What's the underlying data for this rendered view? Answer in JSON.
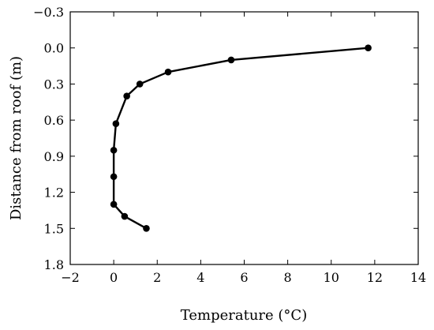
{
  "chart_data": {
    "type": "line",
    "xlabel": "Temperature (°C)",
    "ylabel": "Distance from roof (m)",
    "xlim": [
      -2,
      14
    ],
    "ylim": [
      -0.3,
      1.8
    ],
    "y_inverted": true,
    "x_ticks": [
      -2,
      0,
      2,
      4,
      6,
      8,
      10,
      12,
      14
    ],
    "x_tick_labels": [
      "−2",
      "0",
      "2",
      "4",
      "6",
      "8",
      "10",
      "12",
      "14"
    ],
    "y_ticks": [
      -0.3,
      0.0,
      0.3,
      0.6,
      0.9,
      1.2,
      1.5,
      1.8
    ],
    "y_tick_labels": [
      "−0.3",
      "0.0",
      "0.3",
      "0.6",
      "0.9",
      "1.2",
      "1.5",
      "1.8"
    ],
    "grid": false,
    "series": [
      {
        "color": "#000000",
        "marker": "circle",
        "points": [
          {
            "x": 11.7,
            "y": 0.0
          },
          {
            "x": 5.4,
            "y": 0.1
          },
          {
            "x": 2.5,
            "y": 0.2
          },
          {
            "x": 1.2,
            "y": 0.3
          },
          {
            "x": 0.6,
            "y": 0.4
          },
          {
            "x": 0.1,
            "y": 0.63
          },
          {
            "x": 0.0,
            "y": 0.85
          },
          {
            "x": 0.0,
            "y": 1.07
          },
          {
            "x": 0.0,
            "y": 1.3
          },
          {
            "x": 0.5,
            "y": 1.4
          },
          {
            "x": 1.5,
            "y": 1.5
          }
        ]
      }
    ]
  }
}
